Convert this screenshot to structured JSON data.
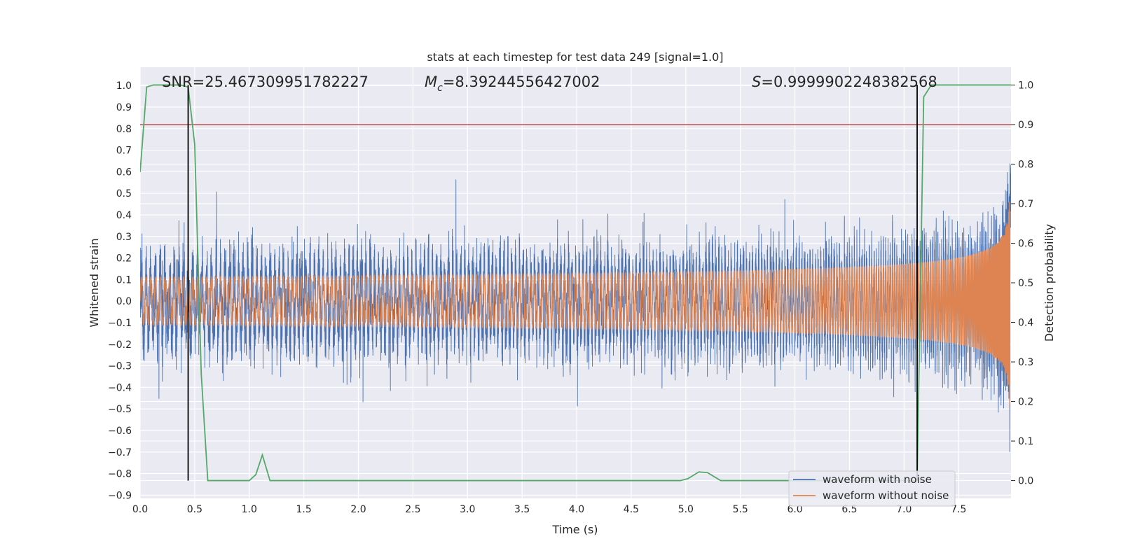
{
  "chart_data": {
    "type": "line",
    "title": "stats at each timestep for test data 249 [signal=1.0]",
    "xlabel": "Time (s)",
    "ylabel": "Whitened strain",
    "y2label": "Detection probability",
    "xlim": [
      0.0,
      7.98
    ],
    "ylim": [
      -0.915,
      1.085
    ],
    "y2lim": [
      -0.045,
      1.045
    ],
    "xticks": [
      "0.0",
      "0.5",
      "1.0",
      "1.5",
      "2.0",
      "2.5",
      "3.0",
      "3.5",
      "4.0",
      "4.5",
      "5.0",
      "5.5",
      "6.0",
      "6.5",
      "7.0",
      "7.5"
    ],
    "yticks": [
      "1.0",
      "0.9",
      "0.8",
      "0.7",
      "0.6",
      "0.5",
      "0.4",
      "0.3",
      "0.2",
      "0.1",
      "0.0",
      "−0.1",
      "−0.2",
      "−0.3",
      "−0.4",
      "−0.5",
      "−0.6",
      "−0.7",
      "−0.8",
      "−0.9"
    ],
    "y2ticks": [
      "1.0",
      "0.9",
      "0.8",
      "0.7",
      "0.6",
      "0.5",
      "0.4",
      "0.3",
      "0.2",
      "0.1",
      "0.0"
    ],
    "grid": true,
    "annotations": {
      "snr": "SNR=25.467309951782227",
      "mc_symbol": "M",
      "mc_sub": "c",
      "mc_value": "=8.39244556427002",
      "s_symbol": "S",
      "s_value": "=0.9999902248382568"
    },
    "series": [
      {
        "name": "waveform with noise",
        "color": "#4c72b0",
        "noise_envelope": 0.27,
        "peak_amplitude": 0.73
      },
      {
        "name": "waveform without noise",
        "color": "#dd8452",
        "start_amplitude": 0.02,
        "end_amplitude": 0.5,
        "start_frequency_hz": 23,
        "merger_time": 7.98
      },
      {
        "name": "detection probability",
        "color": "#55a868",
        "axis": "right",
        "x": [
          0.0,
          0.06,
          0.12,
          0.2,
          0.3,
          0.37,
          0.44,
          0.5,
          0.56,
          0.62,
          0.7,
          0.9,
          1.0,
          1.06,
          1.12,
          1.19,
          1.25,
          1.5,
          2.0,
          3.0,
          4.0,
          4.95,
          5.02,
          5.12,
          5.2,
          5.32,
          5.5,
          6.0,
          6.5,
          7.0,
          7.12,
          7.18,
          7.25,
          7.32,
          7.5,
          7.98
        ],
        "y": [
          0.78,
          0.995,
          1.0,
          1.0,
          1.0,
          1.0,
          0.995,
          0.85,
          0.27,
          0.0,
          0.0,
          0.0,
          0.0,
          0.015,
          0.065,
          0.0,
          0.0,
          0.0,
          0.0,
          0.0,
          0.0,
          0.0,
          0.005,
          0.022,
          0.02,
          0.0,
          0.0,
          0.0,
          0.0,
          0.0,
          0.0,
          0.97,
          1.0,
          1.0,
          1.0,
          1.0
        ]
      }
    ],
    "threshold": {
      "value": 0.9,
      "color": "#c44e52",
      "axis": "right"
    },
    "vertical_markers": {
      "x": [
        0.44,
        7.12
      ],
      "y_top": 1.0,
      "y_bottom": 0.0,
      "color": "#000000"
    },
    "legend": {
      "placement": "bottom-right",
      "entries": [
        "waveform with noise",
        "waveform without noise"
      ]
    }
  }
}
